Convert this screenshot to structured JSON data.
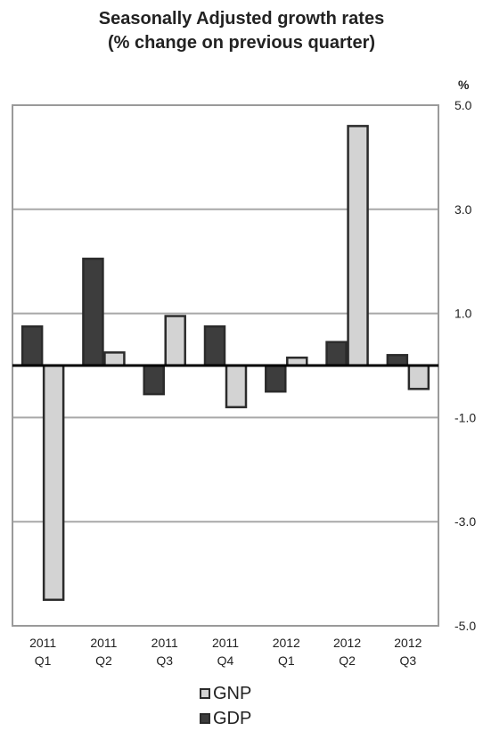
{
  "chart_data": {
    "type": "bar",
    "title": "Seasonally Adjusted growth rates",
    "subtitle": "(% change on previous quarter)",
    "y_unit": "%",
    "categories": [
      [
        "2011",
        "Q1"
      ],
      [
        "2011",
        "Q2"
      ],
      [
        "2011",
        "Q3"
      ],
      [
        "2011",
        "Q4"
      ],
      [
        "2012",
        "Q1"
      ],
      [
        "2012",
        "Q2"
      ],
      [
        "2012",
        "Q3"
      ]
    ],
    "series": [
      {
        "name": "GDP",
        "color": "#3d3d3d",
        "values": [
          0.75,
          2.05,
          -0.55,
          0.75,
          -0.5,
          0.45,
          0.2
        ]
      },
      {
        "name": "GNP",
        "color": "#d3d3d3",
        "values": [
          -4.5,
          0.25,
          0.95,
          -0.8,
          0.15,
          4.6,
          -0.45
        ]
      }
    ],
    "yticks": [
      "5.0",
      "3.0",
      "1.0",
      "-1.0",
      "-3.0",
      "-5.0"
    ],
    "ylim": [
      -5,
      5
    ],
    "grid": true,
    "legend_position": "bottom-center"
  }
}
